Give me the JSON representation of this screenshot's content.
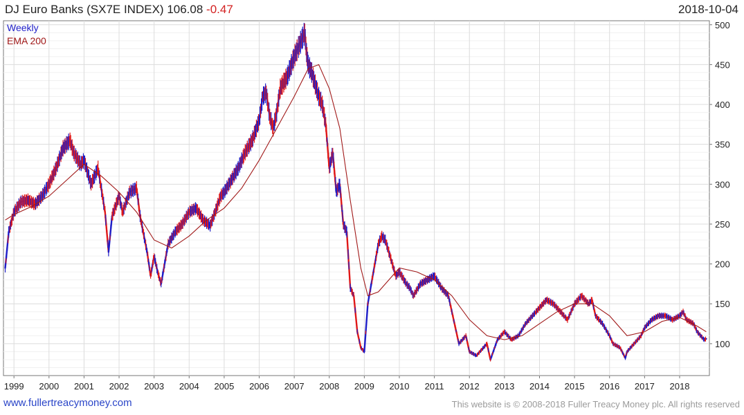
{
  "header": {
    "name": "DJ Euro Banks (SX7E INDEX)",
    "last": "106.08",
    "change": "-0.47",
    "date": "2018-10-04"
  },
  "footer": {
    "site": "www.fullertreacymoney.com",
    "copyright": "This website is © 2008-2018 Fuller Treacy Money plc. All rights reserved"
  },
  "colors": {
    "price_up": "#1e1ec8",
    "price_down": "#e01818",
    "ema": "#a01818",
    "grid": "#dcdcdc",
    "axis": "#777777"
  },
  "chart_data": {
    "type": "line",
    "title": "DJ Euro Banks (SX7E INDEX) 106.08 -0.47",
    "frequency": "Weekly",
    "xlabel": "",
    "ylabel": "",
    "xlim": [
      1998.7,
      2018.85
    ],
    "ylim": [
      60,
      505
    ],
    "x_ticks": [
      "1999",
      "2000",
      "2001",
      "2002",
      "2003",
      "2004",
      "2005",
      "2006",
      "2007",
      "2008",
      "2009",
      "2010",
      "2011",
      "2012",
      "2013",
      "2014",
      "2015",
      "2016",
      "2017",
      "2018"
    ],
    "x_tick_values": [
      1999,
      2000,
      2001,
      2002,
      2003,
      2004,
      2005,
      2006,
      2007,
      2008,
      2009,
      2010,
      2011,
      2012,
      2013,
      2014,
      2015,
      2016,
      2017,
      2018
    ],
    "y_ticks": [
      100,
      150,
      200,
      250,
      300,
      350,
      400,
      450,
      500
    ],
    "grid": true,
    "legend": [
      {
        "name": "Weekly",
        "color": "#1e1ec8"
      },
      {
        "name": "EMA 200",
        "color": "#a01818"
      }
    ],
    "legend_position": "top-left",
    "series": [
      {
        "name": "Weekly",
        "x": [
          1998.75,
          1998.85,
          1999.0,
          1999.2,
          1999.4,
          1999.6,
          1999.8,
          2000.0,
          2000.2,
          2000.4,
          2000.6,
          2000.7,
          2000.9,
          2001.0,
          2001.2,
          2001.4,
          2001.6,
          2001.7,
          2001.8,
          2002.0,
          2002.1,
          2002.3,
          2002.5,
          2002.6,
          2002.8,
          2002.9,
          2003.0,
          2003.1,
          2003.2,
          2003.4,
          2003.6,
          2003.8,
          2004.0,
          2004.2,
          2004.4,
          2004.6,
          2004.7,
          2004.9,
          2005.0,
          2005.2,
          2005.4,
          2005.6,
          2005.8,
          2006.0,
          2006.1,
          2006.2,
          2006.3,
          2006.4,
          2006.5,
          2006.6,
          2006.8,
          2007.0,
          2007.1,
          2007.2,
          2007.3,
          2007.35,
          2007.4,
          2007.5,
          2007.6,
          2007.7,
          2007.8,
          2007.9,
          2008.0,
          2008.1,
          2008.2,
          2008.3,
          2008.4,
          2008.5,
          2008.6,
          2008.7,
          2008.8,
          2008.9,
          2009.0,
          2009.1,
          2009.2,
          2009.3,
          2009.4,
          2009.5,
          2009.6,
          2009.7,
          2009.8,
          2009.9,
          2010.0,
          2010.2,
          2010.3,
          2010.4,
          2010.6,
          2010.8,
          2011.0,
          2011.2,
          2011.4,
          2011.6,
          2011.7,
          2011.9,
          2012.0,
          2012.2,
          2012.4,
          2012.5,
          2012.6,
          2012.8,
          2013.0,
          2013.2,
          2013.4,
          2013.6,
          2013.8,
          2014.0,
          2014.2,
          2014.4,
          2014.6,
          2014.8,
          2015.0,
          2015.2,
          2015.4,
          2015.5,
          2015.6,
          2015.8,
          2016.0,
          2016.1,
          2016.3,
          2016.45,
          2016.5,
          2016.7,
          2016.9,
          2017.0,
          2017.2,
          2017.4,
          2017.6,
          2017.8,
          2018.0,
          2018.1,
          2018.2,
          2018.4,
          2018.5,
          2018.6,
          2018.7,
          2018.76
        ],
        "values": [
          195,
          240,
          265,
          278,
          280,
          275,
          285,
          300,
          320,
          345,
          355,
          340,
          325,
          330,
          300,
          320,
          265,
          215,
          260,
          285,
          265,
          290,
          295,
          260,
          215,
          185,
          210,
          190,
          175,
          225,
          240,
          250,
          265,
          270,
          255,
          248,
          260,
          285,
          290,
          305,
          320,
          340,
          355,
          380,
          410,
          415,
          385,
          370,
          390,
          420,
          435,
          460,
          470,
          480,
          490,
          465,
          450,
          440,
          425,
          410,
          400,
          375,
          320,
          340,
          290,
          300,
          250,
          240,
          170,
          160,
          115,
          95,
          90,
          150,
          175,
          200,
          225,
          235,
          230,
          215,
          200,
          185,
          190,
          175,
          170,
          160,
          175,
          180,
          185,
          170,
          160,
          120,
          100,
          110,
          90,
          85,
          95,
          100,
          80,
          105,
          115,
          105,
          110,
          125,
          135,
          145,
          155,
          150,
          140,
          130,
          150,
          160,
          150,
          155,
          135,
          125,
          110,
          100,
          95,
          82,
          90,
          100,
          110,
          120,
          130,
          135,
          135,
          130,
          135,
          140,
          130,
          125,
          115,
          110,
          105,
          106.08
        ]
      },
      {
        "name": "EMA 200",
        "x": [
          1998.75,
          1999.0,
          1999.5,
          2000.0,
          2000.5,
          2001.0,
          2001.5,
          2002.0,
          2002.5,
          2003.0,
          2003.5,
          2004.0,
          2004.5,
          2005.0,
          2005.5,
          2006.0,
          2006.5,
          2007.0,
          2007.4,
          2007.7,
          2008.0,
          2008.3,
          2008.6,
          2008.9,
          2009.1,
          2009.4,
          2009.7,
          2010.0,
          2010.5,
          2011.0,
          2011.5,
          2012.0,
          2012.5,
          2013.0,
          2013.5,
          2014.0,
          2014.5,
          2015.0,
          2015.5,
          2016.0,
          2016.5,
          2017.0,
          2017.5,
          2018.0,
          2018.5,
          2018.76
        ],
        "values": [
          255,
          262,
          272,
          285,
          305,
          325,
          310,
          290,
          265,
          230,
          220,
          235,
          255,
          270,
          295,
          330,
          370,
          410,
          445,
          450,
          420,
          370,
          280,
          195,
          160,
          165,
          180,
          195,
          190,
          180,
          160,
          130,
          110,
          105,
          110,
          125,
          140,
          150,
          150,
          135,
          110,
          115,
          128,
          133,
          122,
          115
        ]
      }
    ]
  }
}
